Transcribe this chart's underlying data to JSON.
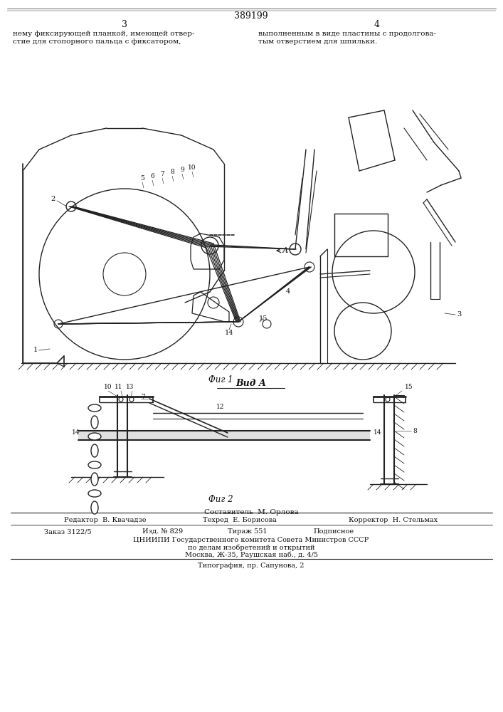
{
  "title": "389199",
  "page_num_left": "3",
  "page_num_right": "4",
  "text_left": "нему фиксирующей планкой, имеющей отвер-\nстие для стопорного пальца с фиксатором,",
  "text_right": "выполненным в виде пластины с продолгова-\nтым отверстием для шпильки.",
  "fig1_caption": "Фиг 1",
  "fig2_caption": "Фиг 2",
  "view_label": "Вид А",
  "editor_label": "Составитель  М. Орлова",
  "editor_line": "Редактор  В. Квачадзе",
  "techred_line": "Техред  Е. Борисова",
  "corrector_line": "Корректор  Н. Стельмах",
  "order_line": "Заказ 3122/5",
  "izd_line": "Изд. № 829",
  "tirazh_line": "Тираж 551",
  "podp_line": "Подписное",
  "org_line": "ЦНИИПИ Государственного комитета Совета Министров СССР",
  "org_line2": "по делам изобретений и открытий",
  "address_line": "Москва, Ж-35, Раушская наб., д. 4/5",
  "print_line": "Типография, пр. Сапунова, 2",
  "bg_color": "#ffffff",
  "line_color": "#222222",
  "text_color": "#111111"
}
